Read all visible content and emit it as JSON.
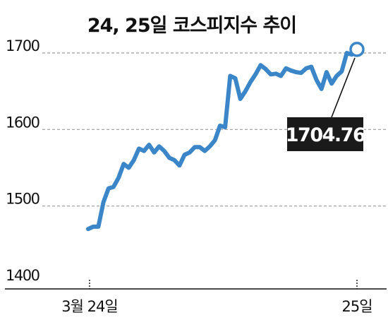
{
  "chart_data": {
    "type": "line",
    "title": "24, 25일 코스피지수 추이",
    "xlabel": "",
    "ylabel": "",
    "ylim": [
      1400,
      1700
    ],
    "yticks": [
      1400,
      1500,
      1600,
      1700
    ],
    "ytick_labels": [
      "1400",
      "1500",
      "1600",
      "1700"
    ],
    "xtick_labels": [
      "3월 24일",
      "25일"
    ],
    "grid": true,
    "legend": "none",
    "line_color": "#3a86c8",
    "highlight_color": "#3a86c8",
    "callout_bg": "#1a1a1a",
    "series": [
      {
        "values": [
          1470,
          1473,
          1473,
          1505,
          1523,
          1525,
          1537,
          1555,
          1550,
          1560,
          1575,
          1572,
          1580,
          1570,
          1578,
          1572,
          1563,
          1560,
          1553,
          1567,
          1570,
          1577,
          1577,
          1572,
          1578,
          1586,
          1605,
          1603,
          1670,
          1667,
          1640,
          1650,
          1662,
          1672,
          1684,
          1679,
          1672,
          1673,
          1670,
          1680,
          1677,
          1675,
          1674,
          1680,
          1682,
          1665,
          1653,
          1675,
          1660,
          1670,
          1676,
          1700,
          1698,
          1704.76
        ]
      }
    ],
    "annotation": {
      "label": "1704.76",
      "value": 1704.76
    }
  }
}
